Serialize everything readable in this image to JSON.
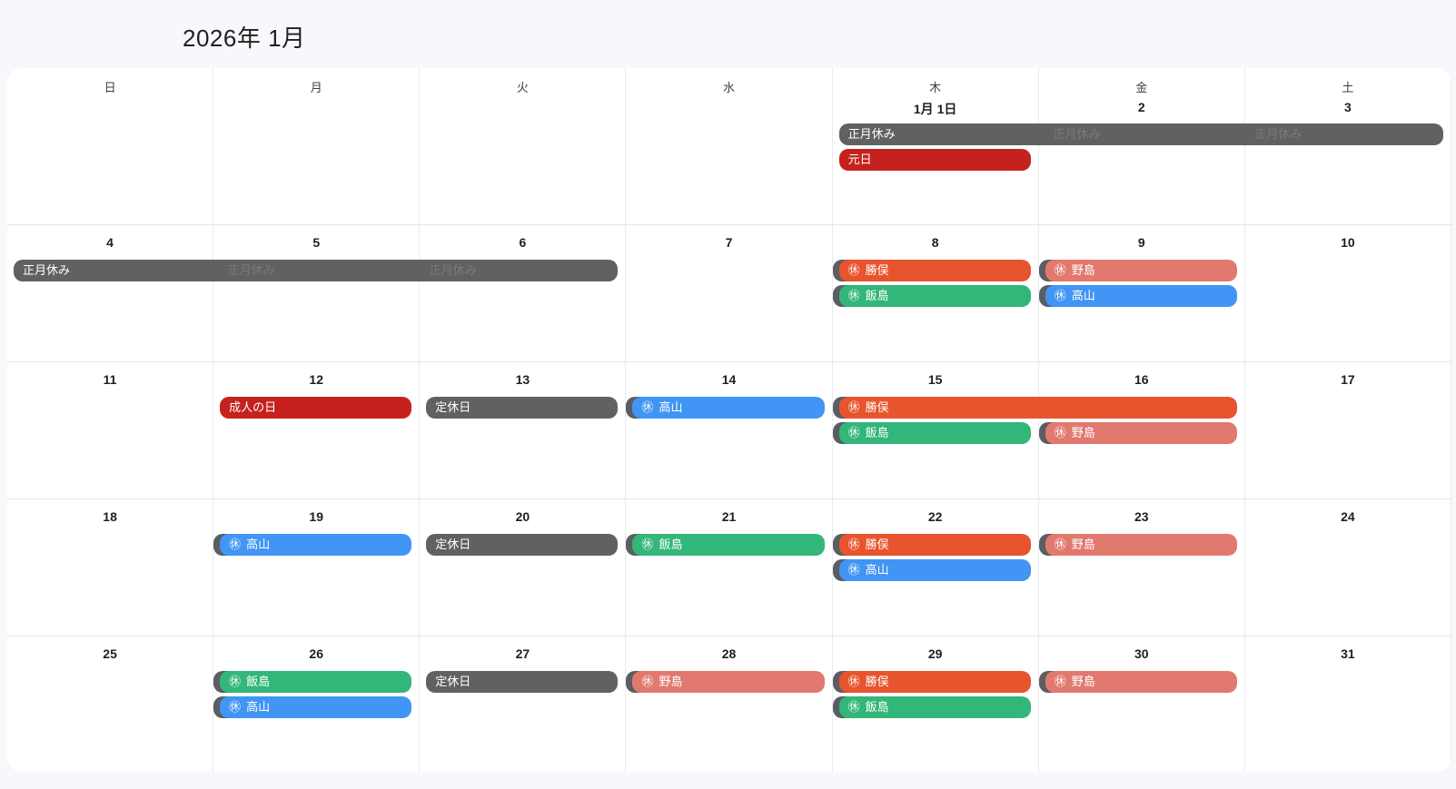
{
  "title": "2026年 1月",
  "weekday_headers": [
    "日",
    "月",
    "火",
    "水",
    "木",
    "金",
    "土"
  ],
  "rest_icon": "㊡",
  "colors": {
    "background": "#f6f8fc",
    "card": "#ffffff",
    "grid_line": "#e9ecf0",
    "holiday_red": "#c5221f",
    "closed_gray": "#616161",
    "katsumata_orange": "#e8542e",
    "iijima_green": "#33b679",
    "nojima_salmon": "#e2796f",
    "takayama_blue": "#4195f4",
    "notch_gray": "#5a5d61",
    "title_text": "#1f1f1f"
  },
  "weeks": [
    {
      "days": [
        "",
        "",
        "",
        "",
        "1月 1日",
        "2",
        "3"
      ],
      "events": [
        {
          "label": "正月休み",
          "color": "closed_gray",
          "col": 4,
          "span": 3,
          "row": 0,
          "icon": false,
          "notch": false,
          "ghost": true
        },
        {
          "label": "元日",
          "color": "holiday_red",
          "col": 4,
          "span": 1,
          "row": 1,
          "icon": false,
          "notch": false,
          "ghost": false
        }
      ]
    },
    {
      "days": [
        "4",
        "5",
        "6",
        "7",
        "8",
        "9",
        "10"
      ],
      "events": [
        {
          "label": "正月休み",
          "color": "closed_gray",
          "col": 0,
          "span": 3,
          "row": 0,
          "icon": false,
          "notch": false,
          "ghost": true
        },
        {
          "label": "勝俣",
          "color": "katsumata_orange",
          "col": 4,
          "span": 1,
          "row": 0,
          "icon": true,
          "notch": true,
          "ghost": false
        },
        {
          "label": "飯島",
          "color": "iijima_green",
          "col": 4,
          "span": 1,
          "row": 1,
          "icon": true,
          "notch": true,
          "ghost": false
        },
        {
          "label": "野島",
          "color": "nojima_salmon",
          "col": 5,
          "span": 1,
          "row": 0,
          "icon": true,
          "notch": true,
          "ghost": false
        },
        {
          "label": "高山",
          "color": "takayama_blue",
          "col": 5,
          "span": 1,
          "row": 1,
          "icon": true,
          "notch": true,
          "ghost": false
        }
      ]
    },
    {
      "days": [
        "11",
        "12",
        "13",
        "14",
        "15",
        "16",
        "17"
      ],
      "events": [
        {
          "label": "成人の日",
          "color": "holiday_red",
          "col": 1,
          "span": 1,
          "row": 0,
          "icon": false,
          "notch": false,
          "ghost": false
        },
        {
          "label": "定休日",
          "color": "closed_gray",
          "col": 2,
          "span": 1,
          "row": 0,
          "icon": false,
          "notch": false,
          "ghost": false
        },
        {
          "label": "高山",
          "color": "takayama_blue",
          "col": 3,
          "span": 1,
          "row": 0,
          "icon": true,
          "notch": true,
          "ghost": false
        },
        {
          "label": "勝俣",
          "color": "katsumata_orange",
          "col": 4,
          "span": 2,
          "row": 0,
          "icon": true,
          "notch": true,
          "ghost": false
        },
        {
          "label": "飯島",
          "color": "iijima_green",
          "col": 4,
          "span": 1,
          "row": 1,
          "icon": true,
          "notch": true,
          "ghost": false
        },
        {
          "label": "野島",
          "color": "nojima_salmon",
          "col": 5,
          "span": 1,
          "row": 1,
          "icon": true,
          "notch": true,
          "ghost": false
        }
      ]
    },
    {
      "days": [
        "18",
        "19",
        "20",
        "21",
        "22",
        "23",
        "24"
      ],
      "events": [
        {
          "label": "高山",
          "color": "takayama_blue",
          "col": 1,
          "span": 1,
          "row": 0,
          "icon": true,
          "notch": true,
          "ghost": false
        },
        {
          "label": "定休日",
          "color": "closed_gray",
          "col": 2,
          "span": 1,
          "row": 0,
          "icon": false,
          "notch": false,
          "ghost": false
        },
        {
          "label": "飯島",
          "color": "iijima_green",
          "col": 3,
          "span": 1,
          "row": 0,
          "icon": true,
          "notch": true,
          "ghost": false
        },
        {
          "label": "勝俣",
          "color": "katsumata_orange",
          "col": 4,
          "span": 1,
          "row": 0,
          "icon": true,
          "notch": true,
          "ghost": false
        },
        {
          "label": "高山",
          "color": "takayama_blue",
          "col": 4,
          "span": 1,
          "row": 1,
          "icon": true,
          "notch": true,
          "ghost": false
        },
        {
          "label": "野島",
          "color": "nojima_salmon",
          "col": 5,
          "span": 1,
          "row": 0,
          "icon": true,
          "notch": true,
          "ghost": false
        }
      ]
    },
    {
      "days": [
        "25",
        "26",
        "27",
        "28",
        "29",
        "30",
        "31"
      ],
      "events": [
        {
          "label": "飯島",
          "color": "iijima_green",
          "col": 1,
          "span": 1,
          "row": 0,
          "icon": true,
          "notch": true,
          "ghost": false
        },
        {
          "label": "高山",
          "color": "takayama_blue",
          "col": 1,
          "span": 1,
          "row": 1,
          "icon": true,
          "notch": true,
          "ghost": false
        },
        {
          "label": "定休日",
          "color": "closed_gray",
          "col": 2,
          "span": 1,
          "row": 0,
          "icon": false,
          "notch": false,
          "ghost": false
        },
        {
          "label": "野島",
          "color": "nojima_salmon",
          "col": 3,
          "span": 1,
          "row": 0,
          "icon": true,
          "notch": true,
          "ghost": false
        },
        {
          "label": "勝俣",
          "color": "katsumata_orange",
          "col": 4,
          "span": 1,
          "row": 0,
          "icon": true,
          "notch": true,
          "ghost": false
        },
        {
          "label": "飯島",
          "color": "iijima_green",
          "col": 4,
          "span": 1,
          "row": 1,
          "icon": true,
          "notch": true,
          "ghost": false
        },
        {
          "label": "野島",
          "color": "nojima_salmon",
          "col": 5,
          "span": 1,
          "row": 0,
          "icon": true,
          "notch": true,
          "ghost": false
        }
      ]
    }
  ]
}
